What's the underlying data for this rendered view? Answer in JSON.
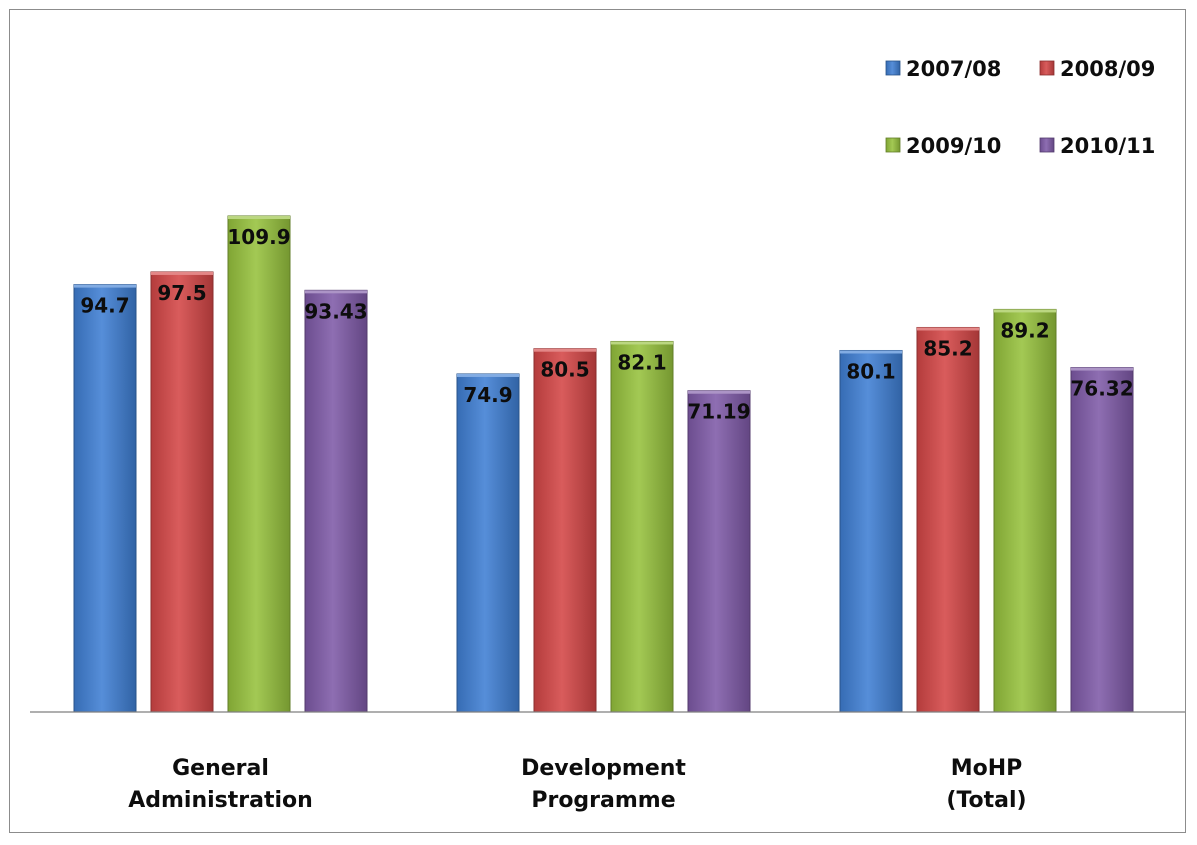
{
  "chart_data": {
    "type": "bar",
    "title": "",
    "xlabel": "",
    "ylabel": "",
    "categories": [
      [
        "General",
        "Administration"
      ],
      [
        "Development",
        "Programme"
      ],
      [
        "MoHP",
        "(Total)"
      ]
    ],
    "series": [
      {
        "name": "2007/08",
        "color": "#3f7fd4",
        "values": [
          94.7,
          74.9,
          80.1
        ],
        "labels": [
          "94.7",
          "74.9",
          "80.1"
        ]
      },
      {
        "name": "2008/09",
        "color": "#d44646",
        "values": [
          97.5,
          80.5,
          85.2
        ],
        "labels": [
          "97.5",
          "80.5",
          "85.2"
        ]
      },
      {
        "name": "2009/10",
        "color": "#96c23d",
        "values": [
          109.9,
          82.1,
          89.2
        ],
        "labels": [
          "109.9",
          "82.1",
          "89.2"
        ]
      },
      {
        "name": "2010/11",
        "color": "#7f5aa8",
        "values": [
          93.43,
          71.19,
          76.32
        ],
        "labels": [
          "93.43",
          "71.19",
          "76.32"
        ]
      }
    ],
    "ylim": [
      0,
      110
    ],
    "grid": false,
    "legend_position": "top-right"
  }
}
